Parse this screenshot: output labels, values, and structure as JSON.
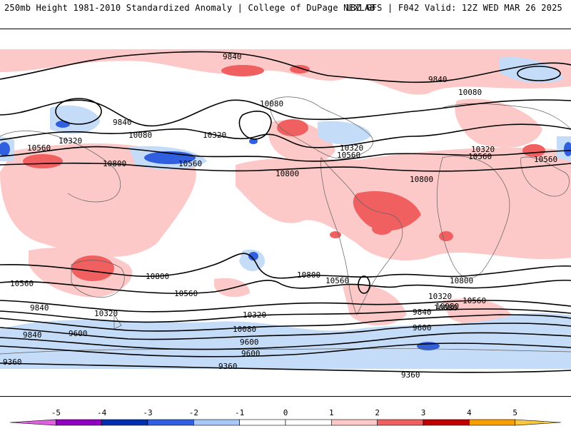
{
  "header": {
    "left_title": "250mb Height 1981-2010 Standardized Anomaly | College of DuPage NEXLAB",
    "right_title": "18Z GFS | F042 Valid: 12Z WED MAR 26 2025"
  },
  "map": {
    "contour_labels": [
      "9840",
      "9840",
      "9840",
      "9840",
      "10080",
      "10080",
      "10080",
      "10080",
      "10080",
      "10320",
      "10320",
      "10320",
      "10320",
      "10320",
      "10320",
      "10560",
      "10560",
      "10560",
      "10560",
      "10560",
      "10560",
      "10560",
      "10560",
      "10560",
      "10800",
      "10800",
      "10800",
      "10800",
      "10800",
      "10800",
      "9600",
      "9600",
      "9600",
      "9600",
      "9360",
      "9360",
      "9360",
      "9840",
      "9840",
      "10080",
      "10320"
    ]
  },
  "colorbar": {
    "ticks": [
      "-5",
      "-4",
      "-3",
      "-2",
      "-1",
      "0",
      "1",
      "2",
      "3",
      "4",
      "5"
    ],
    "colors": [
      "#e060e0",
      "#9000c0",
      "#0030b0",
      "#3060e0",
      "#a8c8f8",
      "#ffffff",
      "#ffffff",
      "#fcc8c8",
      "#f06060",
      "#c00000",
      "#f8a000",
      "#f8c840"
    ]
  }
}
